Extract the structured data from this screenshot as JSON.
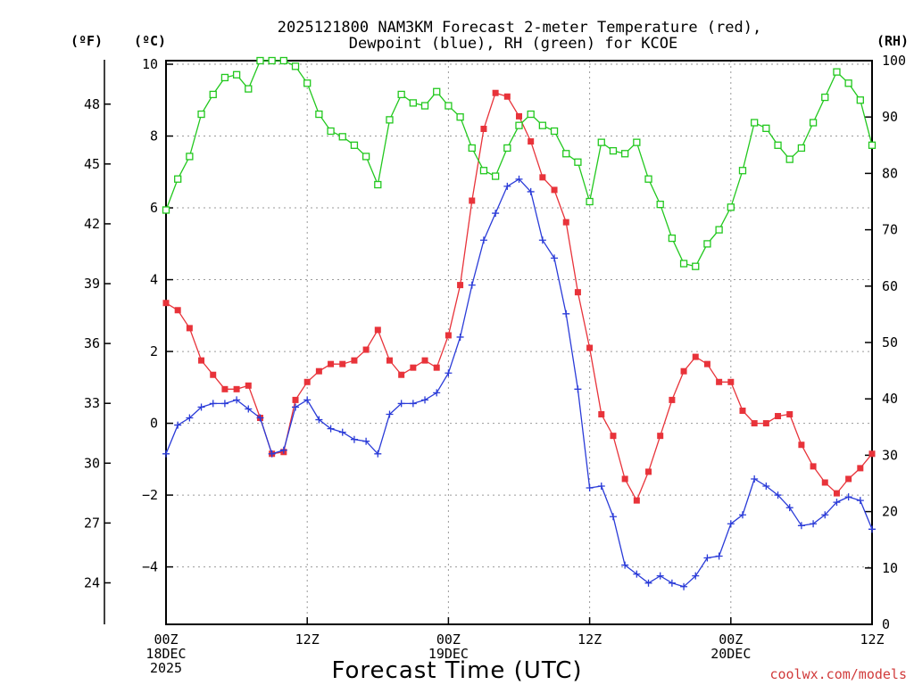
{
  "chart_data": {
    "type": "line",
    "title_line1": "2025121800 NAM3KM Forecast 2-meter Temperature (red),",
    "title_line2": "Dewpoint (blue), RH (green) for KCOE",
    "xlabel": "Forecast Time (UTC)",
    "credit": "coolwx.com/models",
    "x_range_hours": [
      0,
      60
    ],
    "left_axis": {
      "unit": "(ºC)",
      "ylim": [
        -5.6,
        10.1
      ],
      "ticks": [
        -4,
        -2,
        0,
        2,
        4,
        6,
        8,
        10
      ],
      "tick_labels": [
        "−4",
        "−2",
        "0",
        "2",
        "4",
        "6",
        "8",
        "10"
      ]
    },
    "fahrenheit_axis": {
      "unit": "(ºF)",
      "ticks": [
        24,
        27,
        30,
        33,
        36,
        39,
        42,
        45,
        48
      ]
    },
    "right_axis": {
      "unit": "(RH)",
      "ylim": [
        0,
        100
      ],
      "ticks": [
        0,
        10,
        20,
        30,
        40,
        50,
        60,
        70,
        80,
        90,
        100
      ]
    },
    "x_ticks": [
      {
        "hour": 0,
        "lines": [
          "00Z",
          "18DEC",
          "2025"
        ]
      },
      {
        "hour": 12,
        "lines": [
          "12Z"
        ]
      },
      {
        "hour": 24,
        "lines": [
          "00Z",
          "19DEC"
        ]
      },
      {
        "hour": 36,
        "lines": [
          "12Z"
        ]
      },
      {
        "hour": 48,
        "lines": [
          "00Z",
          "20DEC"
        ]
      },
      {
        "hour": 60,
        "lines": [
          "12Z"
        ]
      }
    ],
    "series": [
      {
        "name": "Temperature",
        "axis": "celsius",
        "color": "#e8333a",
        "marker": "filled-square",
        "values": [
          3.35,
          3.15,
          2.65,
          1.75,
          1.35,
          0.95,
          0.95,
          1.05,
          0.15,
          -0.85,
          -0.8,
          0.65,
          1.15,
          1.45,
          1.65,
          1.65,
          1.75,
          2.05,
          2.6,
          1.75,
          1.35,
          1.55,
          1.75,
          1.55,
          2.45,
          3.85,
          6.2,
          8.2,
          9.2,
          9.1,
          8.55,
          7.85,
          6.85,
          6.5,
          5.6,
          3.65,
          2.1,
          0.25,
          -0.35,
          -1.55,
          -2.15,
          -1.35,
          -0.35,
          0.65,
          1.45,
          1.85,
          1.65,
          1.15,
          1.15,
          0.35,
          0,
          0,
          0.2,
          0.25,
          -0.6,
          -1.2,
          -1.65,
          -1.95,
          -1.55,
          -1.25,
          -0.85
        ]
      },
      {
        "name": "Dewpoint",
        "axis": "celsius",
        "color": "#2a3bd8",
        "marker": "plus",
        "values": [
          -0.85,
          -0.05,
          0.15,
          0.45,
          0.55,
          0.55,
          0.65,
          0.4,
          0.15,
          -0.85,
          -0.75,
          0.45,
          0.65,
          0.1,
          -0.15,
          -0.25,
          -0.45,
          -0.5,
          -0.85,
          0.25,
          0.55,
          0.55,
          0.65,
          0.85,
          1.4,
          2.4,
          3.85,
          5.1,
          5.85,
          6.6,
          6.8,
          6.45,
          5.1,
          4.6,
          3.05,
          0.95,
          -1.8,
          -1.75,
          -2.6,
          -3.95,
          -4.2,
          -4.45,
          -4.25,
          -4.45,
          -4.55,
          -4.25,
          -3.75,
          -3.7,
          -2.8,
          -2.55,
          -1.55,
          -1.75,
          -2,
          -2.35,
          -2.85,
          -2.8,
          -2.55,
          -2.2,
          -2.05,
          -2.15,
          -2.95
        ]
      },
      {
        "name": "RH",
        "axis": "rh",
        "color": "#22c81e",
        "marker": "open-square",
        "values": [
          73.5,
          79,
          83,
          90.5,
          94,
          97,
          97.5,
          95,
          100,
          100,
          100,
          99,
          96,
          90.5,
          87.5,
          86.5,
          85,
          83,
          78,
          89.5,
          94,
          92.5,
          92,
          94.5,
          92,
          90,
          84.5,
          80.5,
          79.5,
          84.5,
          88.5,
          90.5,
          88.5,
          87.5,
          83.5,
          82,
          75,
          85.5,
          84,
          83.5,
          85.5,
          79,
          74.5,
          68.5,
          64,
          63.5,
          67.5,
          70,
          74,
          80.5,
          89,
          88,
          85,
          82.5,
          84.5,
          89,
          93.5,
          98,
          96,
          93,
          85
        ]
      }
    ]
  }
}
